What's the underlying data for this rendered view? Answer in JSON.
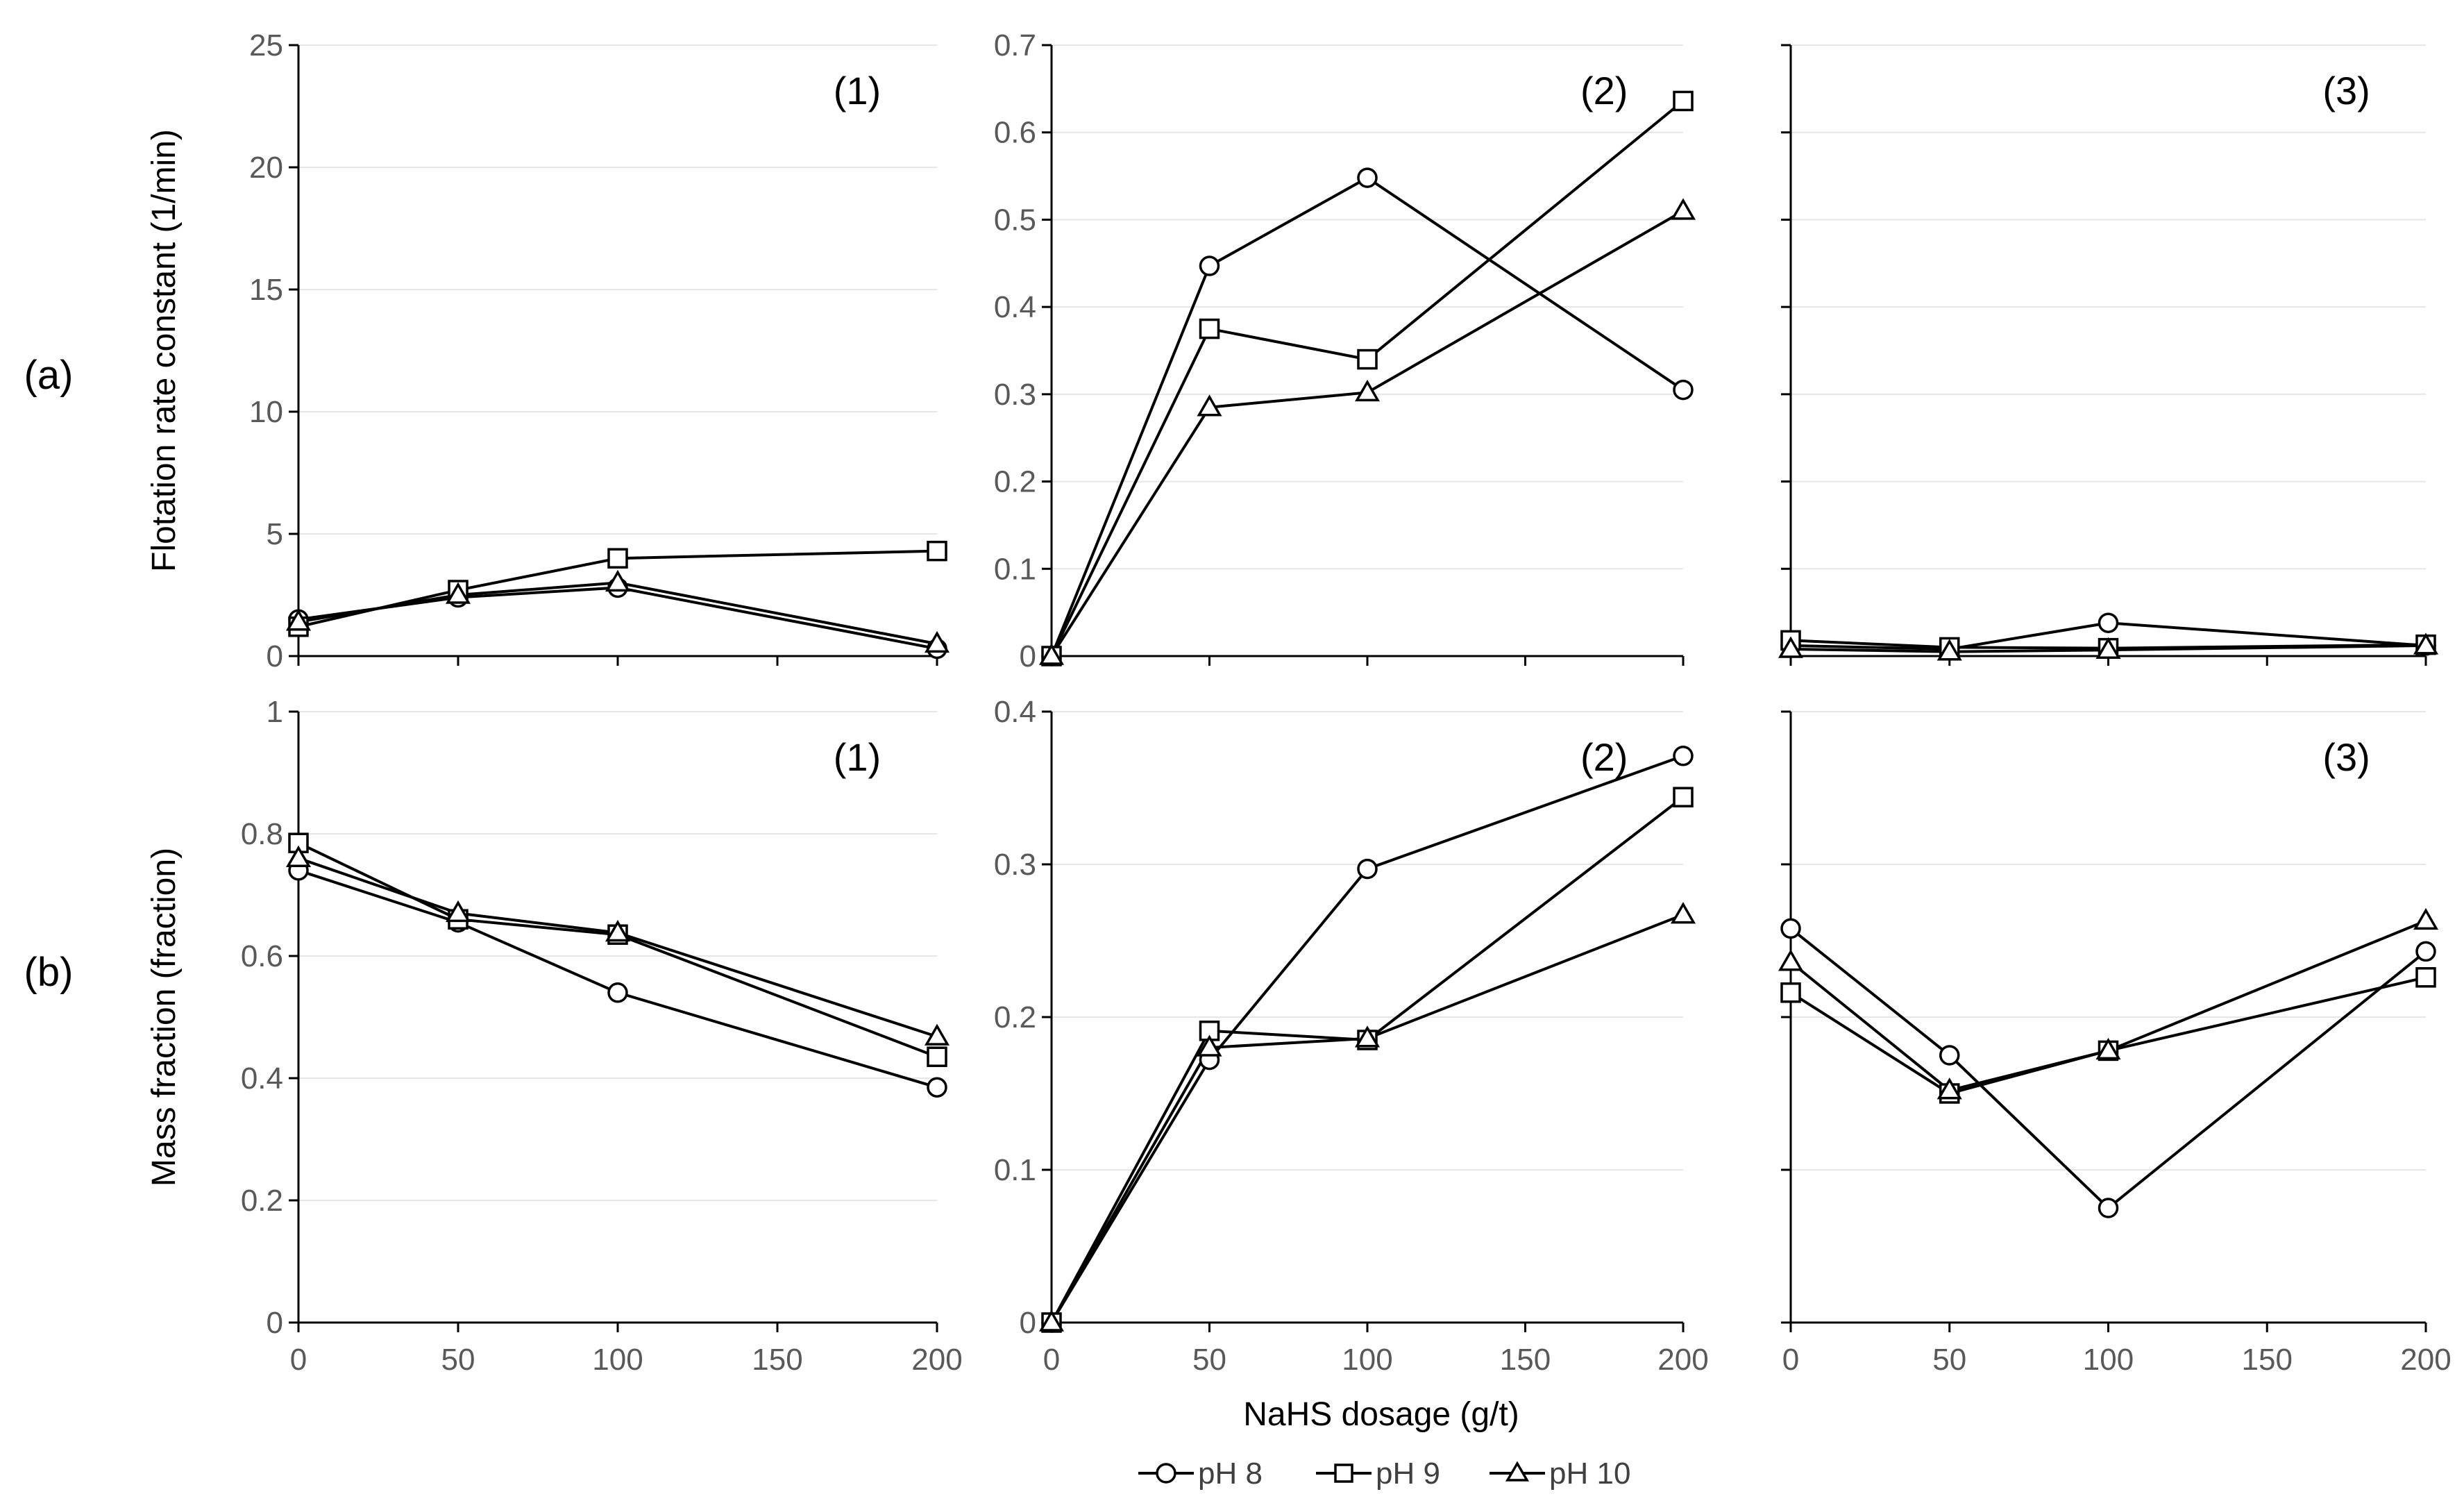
{
  "figure": {
    "row_labels": [
      "(a)",
      "(b)"
    ],
    "xlabel": "NaHS dosage (g/t)",
    "legend": [
      {
        "name": "pH 8",
        "marker": "circle"
      },
      {
        "name": "pH 9",
        "marker": "square"
      },
      {
        "name": "pH 10",
        "marker": "triangle"
      }
    ],
    "colors": {
      "line": "#000000",
      "marker_fill": "#ffffff",
      "grid": "#e6e6e6",
      "tick_text": "#595959"
    }
  },
  "chart_data": [
    {
      "id": "a1",
      "type": "line",
      "row": 0,
      "col": 0,
      "panel_label": "(1)",
      "ylabel": "Flotation rate constant (1/min)",
      "x": [
        0,
        50,
        100,
        200
      ],
      "xlim": [
        0,
        200
      ],
      "xticks": [
        "0",
        "50",
        "100",
        "150",
        "200"
      ],
      "ylim": [
        0,
        25
      ],
      "yticks": [
        "0",
        "5",
        "10",
        "15",
        "20",
        "25"
      ],
      "show_y_tick_labels": true,
      "series": [
        {
          "name": "pH 8",
          "values": [
            1.5,
            2.4,
            2.8,
            0.3
          ]
        },
        {
          "name": "pH 9",
          "values": [
            1.2,
            2.7,
            4.0,
            4.3
          ]
        },
        {
          "name": "pH 10",
          "values": [
            1.4,
            2.5,
            3.0,
            0.5
          ]
        }
      ]
    },
    {
      "id": "a2",
      "type": "line",
      "row": 0,
      "col": 1,
      "panel_label": "(2)",
      "ylabel": "",
      "x": [
        0,
        50,
        100,
        200
      ],
      "xlim": [
        0,
        200
      ],
      "xticks": [
        "0",
        "50",
        "100",
        "150",
        "200"
      ],
      "ylim": [
        0,
        0.7
      ],
      "yticks": [
        "0",
        "0.1",
        "0.2",
        "0.3",
        "0.4",
        "0.5",
        "0.6",
        "0.7"
      ],
      "show_y_tick_labels": true,
      "series": [
        {
          "name": "pH 8",
          "values": [
            0,
            0.447,
            0.548,
            0.305
          ]
        },
        {
          "name": "pH 9",
          "values": [
            0,
            0.375,
            0.34,
            0.636
          ]
        },
        {
          "name": "pH 10",
          "values": [
            0,
            0.285,
            0.302,
            0.51
          ]
        }
      ]
    },
    {
      "id": "a3",
      "type": "line",
      "row": 0,
      "col": 2,
      "panel_label": "(3)",
      "ylabel": "",
      "x": [
        0,
        50,
        100,
        200
      ],
      "xlim": [
        0,
        200
      ],
      "xticks": [
        "0",
        "50",
        "100",
        "150",
        "200"
      ],
      "ylim": [
        0,
        0.7
      ],
      "yticks": [
        "0",
        "0.1",
        "0.2",
        "0.3",
        "0.4",
        "0.5",
        "0.6",
        "0.7"
      ],
      "show_y_tick_labels": false,
      "series": [
        {
          "name": "pH 8",
          "values": [
            0.012,
            0.008,
            0.038,
            0.012
          ]
        },
        {
          "name": "pH 9",
          "values": [
            0.018,
            0.01,
            0.009,
            0.013
          ]
        },
        {
          "name": "pH 10",
          "values": [
            0.008,
            0.005,
            0.007,
            0.012
          ]
        }
      ]
    },
    {
      "id": "b1",
      "type": "line",
      "row": 1,
      "col": 0,
      "panel_label": "(1)",
      "ylabel": "Mass fraction (fraction)",
      "x": [
        0,
        50,
        100,
        200
      ],
      "xlim": [
        0,
        200
      ],
      "xticks": [
        "0",
        "50",
        "100",
        "150",
        "200"
      ],
      "ylim": [
        0,
        1
      ],
      "yticks": [
        "0",
        "0.2",
        "0.4",
        "0.6",
        "0.8",
        "1"
      ],
      "show_y_tick_labels": true,
      "series": [
        {
          "name": "pH 8",
          "values": [
            0.74,
            0.655,
            0.54,
            0.385
          ]
        },
        {
          "name": "pH 9",
          "values": [
            0.785,
            0.66,
            0.635,
            0.435
          ]
        },
        {
          "name": "pH 10",
          "values": [
            0.76,
            0.67,
            0.638,
            0.468
          ]
        }
      ]
    },
    {
      "id": "b2",
      "type": "line",
      "row": 1,
      "col": 1,
      "panel_label": "(2)",
      "ylabel": "",
      "x": [
        0,
        50,
        100,
        200
      ],
      "xlim": [
        0,
        200
      ],
      "xticks": [
        "0",
        "50",
        "100",
        "150",
        "200"
      ],
      "ylim": [
        0,
        0.4
      ],
      "yticks": [
        "0",
        "0.1",
        "0.2",
        "0.3",
        "0.4"
      ],
      "show_y_tick_labels": true,
      "series": [
        {
          "name": "pH 8",
          "values": [
            0,
            0.172,
            0.297,
            0.371
          ]
        },
        {
          "name": "pH 9",
          "values": [
            0,
            0.191,
            0.185,
            0.344
          ]
        },
        {
          "name": "pH 10",
          "values": [
            0,
            0.18,
            0.186,
            0.267
          ]
        }
      ]
    },
    {
      "id": "b3",
      "type": "line",
      "row": 1,
      "col": 2,
      "panel_label": "(3)",
      "ylabel": "",
      "x": [
        0,
        50,
        100,
        200
      ],
      "xlim": [
        0,
        200
      ],
      "xticks": [
        "0",
        "50",
        "100",
        "150",
        "200"
      ],
      "ylim": [
        0,
        0.4
      ],
      "yticks": [
        "0",
        "0.1",
        "0.2",
        "0.3",
        "0.4"
      ],
      "show_y_tick_labels": false,
      "series": [
        {
          "name": "pH 8",
          "values": [
            0.258,
            0.175,
            0.075,
            0.243
          ]
        },
        {
          "name": "pH 9",
          "values": [
            0.216,
            0.15,
            0.178,
            0.226
          ]
        },
        {
          "name": "pH 10",
          "values": [
            0.236,
            0.152,
            0.178,
            0.263
          ]
        }
      ]
    }
  ]
}
